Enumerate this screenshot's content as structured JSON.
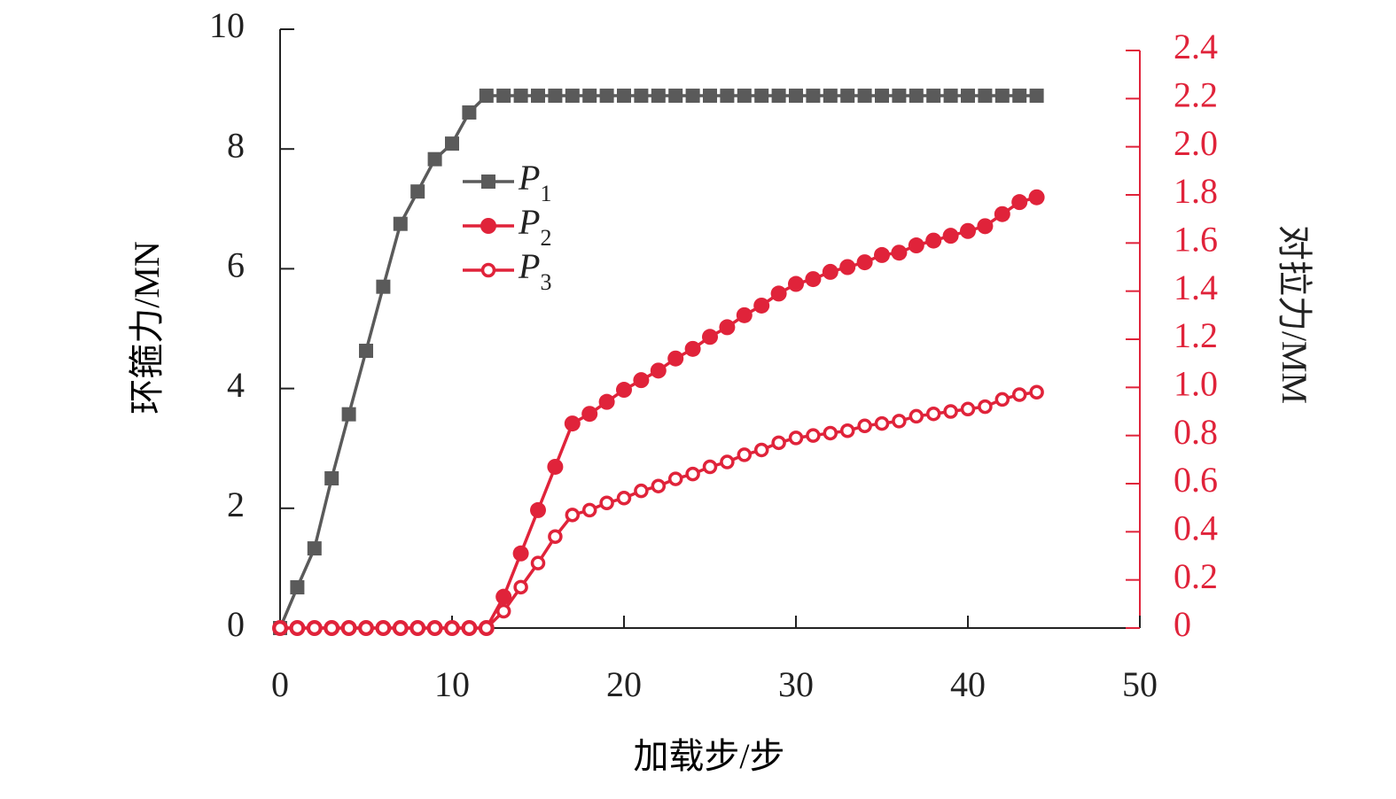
{
  "chart_data": {
    "type": "line",
    "x_label": "加载步/步",
    "y_label": "环箍力/MN",
    "y2_label": "对拉力/MM",
    "x": [
      0,
      1,
      2,
      3,
      4,
      5,
      6,
      7,
      8,
      9,
      10,
      11,
      12,
      13,
      14,
      15,
      16,
      17,
      18,
      19,
      20,
      21,
      22,
      23,
      24,
      25,
      26,
      27,
      28,
      29,
      30,
      31,
      32,
      33,
      34,
      35,
      36,
      37,
      38,
      39,
      40,
      41,
      42,
      43,
      44
    ],
    "series": [
      {
        "name": "P1",
        "color": "#5a5a5a",
        "marker": "square",
        "axis": "y",
        "values": [
          0,
          0.68,
          1.33,
          2.5,
          3.57,
          4.63,
          5.7,
          6.75,
          7.29,
          7.83,
          8.09,
          8.61,
          8.89,
          8.89,
          8.89,
          8.89,
          8.89,
          8.89,
          8.89,
          8.89,
          8.89,
          8.89,
          8.89,
          8.89,
          8.89,
          8.89,
          8.89,
          8.89,
          8.89,
          8.89,
          8.89,
          8.89,
          8.89,
          8.89,
          8.89,
          8.89,
          8.89,
          8.89,
          8.89,
          8.89,
          8.89,
          8.89,
          8.89,
          8.89,
          8.89
        ]
      },
      {
        "name": "P2",
        "color": "#e0233a",
        "marker": "circle",
        "axis": "y2",
        "values": [
          0,
          0,
          0,
          0,
          0,
          0,
          0,
          0,
          0,
          0,
          0,
          0,
          0,
          0.13,
          0.31,
          0.49,
          0.67,
          0.85,
          0.89,
          0.94,
          0.99,
          1.03,
          1.07,
          1.12,
          1.16,
          1.21,
          1.25,
          1.3,
          1.34,
          1.39,
          1.43,
          1.45,
          1.48,
          1.5,
          1.52,
          1.55,
          1.56,
          1.59,
          1.61,
          1.63,
          1.65,
          1.67,
          1.72,
          1.77,
          1.79
        ]
      },
      {
        "name": "P3",
        "color": "#e0233a",
        "marker": "open-circle",
        "axis": "y2",
        "values": [
          0,
          0,
          0,
          0,
          0,
          0,
          0,
          0,
          0,
          0,
          0,
          0,
          0,
          0.07,
          0.17,
          0.27,
          0.38,
          0.47,
          0.49,
          0.52,
          0.54,
          0.57,
          0.59,
          0.62,
          0.64,
          0.67,
          0.69,
          0.72,
          0.74,
          0.77,
          0.79,
          0.8,
          0.81,
          0.82,
          0.84,
          0.85,
          0.86,
          0.88,
          0.89,
          0.9,
          0.91,
          0.92,
          0.95,
          0.97,
          0.98
        ]
      }
    ],
    "xlim": [
      0,
      50
    ],
    "xticks": [
      0,
      10,
      20,
      30,
      40,
      50
    ],
    "ylim": [
      0,
      10
    ],
    "yticks": [
      0,
      2,
      4,
      6,
      8,
      10
    ],
    "y2lim": [
      0,
      2.4
    ],
    "y2ticks": [
      0,
      0.2,
      0.4,
      0.6,
      0.8,
      {
        "value": 1,
        "label": "1.0"
      },
      1.2,
      1.4,
      1.6,
      1.8,
      {
        "value": 2,
        "label": "2.0"
      },
      2.2,
      2.4
    ],
    "y2_color": "#e0233a",
    "grid": false
  }
}
